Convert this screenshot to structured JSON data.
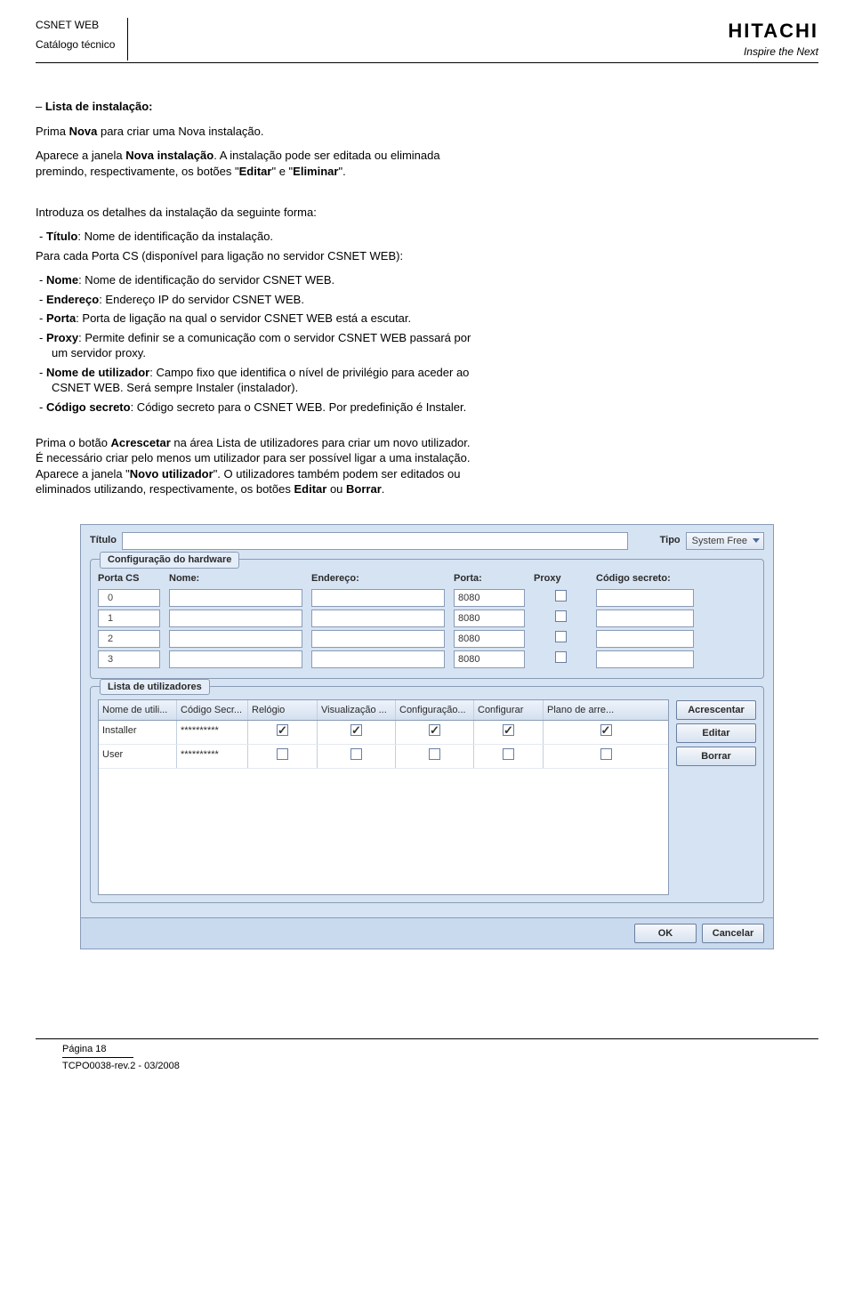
{
  "header": {
    "line1": "CSNET WEB",
    "line2": "Catálogo técnico",
    "brand": "HITACHI",
    "tagline": "Inspire the Next"
  },
  "text": {
    "t1_prefix": "– ",
    "t1_bold": "Lista de instalação:",
    "p1a": "Prima ",
    "p1b": "Nova",
    "p1c": " para criar uma Nova instalação.",
    "p2a": "Aparece a janela ",
    "p2b": "Nova instalação",
    "p2c": ". A instalação pode ser editada ou eliminada premindo, respectivamente, os botões \"",
    "p2d": "Editar",
    "p2e": "\" e \"",
    "p2f": "Eliminar",
    "p2g": "\".",
    "p3": "Introduza os detalhes da instalação da seguinte forma:",
    "i1b": "Título",
    "i1r": ": Nome de identificação da instalação.",
    "p4": "Para cada Porta CS (disponível para ligação no servidor CSNET WEB):",
    "i2b": "Nome",
    "i2r": ": Nome de identificação do servidor CSNET WEB.",
    "i3b": "Endereço",
    "i3r": ": Endereço IP do servidor CSNET WEB.",
    "i4b": "Porta",
    "i4r": ": Porta de ligação na qual o servidor CSNET WEB está a escutar.",
    "i5b": "Proxy",
    "i5r": ": Permite definir se a comunicação com o servidor CSNET WEB passará por um servidor proxy.",
    "i6b": "Nome de utilizador",
    "i6r": ": Campo fixo que identifica o nível de privilégio para aceder ao CSNET WEB. Será sempre Instaler (instalador).",
    "i7b": "Código secreto",
    "i7r": ": Código secreto para o CSNET WEB. Por predefinição é Instaler.",
    "p5a": "Prima o botão ",
    "p5b": "Acrescetar",
    "p5c": " na área Lista de utilizadores para criar um novo utilizador. É necessário criar pelo menos um utilizador para ser possível ligar a uma instalação. Aparece a janela \"",
    "p5d": "Novo utilizador",
    "p5e": "\". O utilizadores também podem ser editados ou eliminados utilizando, respectivamente, os botões ",
    "p5f": "Editar",
    "p5g": " ou ",
    "p5h": "Borrar",
    "p5i": "."
  },
  "dialog": {
    "title_label": "Título",
    "tipo_label": "Tipo",
    "tipo_value": "System Free",
    "hw": {
      "legend": "Configuração do hardware",
      "cols": {
        "porta": "Porta CS",
        "nome": "Nome:",
        "endereco": "Endereço:",
        "porta_col": "Porta:",
        "proxy": "Proxy",
        "codigo": "Código secreto:"
      },
      "rows": [
        {
          "idx": "0",
          "nome": "",
          "endereco": "",
          "porta": "8080",
          "proxy": false,
          "codigo": ""
        },
        {
          "idx": "1",
          "nome": "",
          "endereco": "",
          "porta": "8080",
          "proxy": false,
          "codigo": ""
        },
        {
          "idx": "2",
          "nome": "",
          "endereco": "",
          "porta": "8080",
          "proxy": false,
          "codigo": ""
        },
        {
          "idx": "3",
          "nome": "",
          "endereco": "",
          "porta": "8080",
          "proxy": false,
          "codigo": ""
        }
      ]
    },
    "users": {
      "legend": "Lista de utilizadores",
      "cols": {
        "nome": "Nome de utili...",
        "codigo": "Código Secr...",
        "relogio": "Relógio",
        "visual": "Visualização ...",
        "config1": "Configuração...",
        "config2": "Configurar",
        "plano": "Plano de arre..."
      },
      "rows": [
        {
          "nome": "Installer",
          "codigo": "**********",
          "relogio": true,
          "visual": true,
          "config1": true,
          "config2": true,
          "plano": true
        },
        {
          "nome": "User",
          "codigo": "**********",
          "relogio": false,
          "visual": false,
          "config1": false,
          "config2": false,
          "plano": false
        }
      ],
      "buttons": {
        "add": "Acrescentar",
        "edit": "Editar",
        "del": "Borrar"
      }
    },
    "footer": {
      "ok": "OK",
      "cancel": "Cancelar"
    }
  },
  "footer": {
    "page": "Página 18",
    "rev": "TCPO0038-rev.2 - 03/2008"
  },
  "colors": {
    "dialog_bg": "#d6e3f3",
    "dialog_border": "#8a9bb5",
    "header_grad_top": "#eef3fa",
    "header_grad_bottom": "#d4e0f0"
  }
}
